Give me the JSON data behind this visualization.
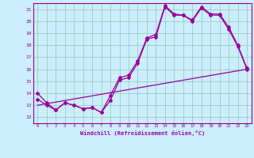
{
  "xlabel": "Windchill (Refroidissement éolien,°C)",
  "bg_color": "#cceeff",
  "grid_color": "#99ccbb",
  "line_color": "#990099",
  "xlim": [
    -0.5,
    23.5
  ],
  "ylim": [
    11.5,
    21.5
  ],
  "xticks": [
    0,
    1,
    2,
    3,
    4,
    5,
    6,
    7,
    8,
    9,
    10,
    11,
    12,
    13,
    14,
    15,
    16,
    17,
    18,
    19,
    20,
    21,
    22,
    23
  ],
  "yticks": [
    12,
    13,
    14,
    15,
    16,
    17,
    18,
    19,
    20,
    21
  ],
  "line1_x": [
    0,
    1,
    2,
    3,
    4,
    5,
    6,
    7,
    8,
    9,
    10,
    11,
    12,
    13,
    14,
    15,
    16,
    17,
    18,
    19,
    20,
    21,
    22,
    23
  ],
  "line1_y": [
    14.0,
    13.2,
    12.6,
    13.2,
    13.0,
    12.7,
    12.8,
    12.4,
    13.4,
    15.1,
    15.3,
    16.5,
    18.5,
    18.7,
    21.2,
    20.5,
    20.5,
    20.0,
    21.1,
    20.5,
    20.5,
    19.3,
    17.9,
    16.0
  ],
  "line2_x": [
    0,
    1,
    2,
    3,
    4,
    5,
    6,
    7,
    8,
    9,
    10,
    11,
    12,
    13,
    14,
    15,
    16,
    17,
    18,
    19,
    20,
    21,
    22,
    23
  ],
  "line2_y": [
    13.5,
    13.0,
    12.6,
    13.2,
    13.0,
    12.7,
    12.8,
    12.4,
    13.8,
    15.3,
    15.5,
    16.7,
    18.6,
    18.9,
    21.3,
    20.6,
    20.5,
    20.1,
    21.2,
    20.6,
    20.6,
    19.5,
    18.0,
    16.1
  ],
  "line3_x": [
    0,
    23
  ],
  "line3_y": [
    13.0,
    16.0
  ]
}
